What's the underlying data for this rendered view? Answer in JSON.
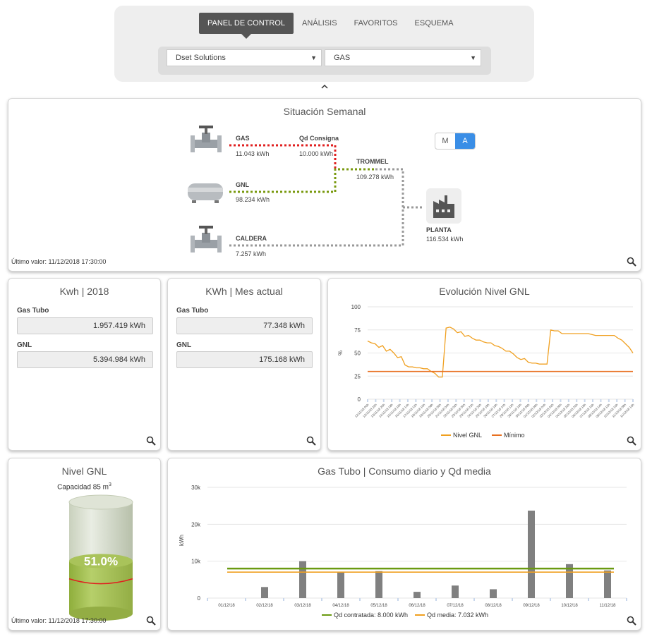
{
  "nav": {
    "tabs": [
      "PANEL DE CONTROL",
      "ANÁLISIS",
      "FAVORITOS",
      "ESQUEMA"
    ],
    "company_select": "Dset Solutions",
    "type_select": "GAS",
    "collapse_glyph": "^"
  },
  "situacion": {
    "title": "Situación Semanal",
    "gas_label": "GAS",
    "gas_value": "11.043 kWh",
    "qd_label": "Qd Consigna",
    "qd_value": "10.000 kWh",
    "trommel_label": "TROMMEL",
    "trommel_value": "109.278 kWh",
    "gnl_label": "GNL",
    "gnl_value": "98.234 kWh",
    "caldera_label": "CALDERA",
    "caldera_value": "7.257 kWh",
    "planta_label": "PLANTA",
    "planta_value": "116.534 kWh",
    "toggle_m": "M",
    "toggle_a": "A",
    "last_value": "Último valor: 11/12/2018 17:30:00",
    "colors": {
      "gas": "#e02020",
      "gnl": "#7a9a10",
      "caldera": "#999999"
    }
  },
  "kwh2018": {
    "title": "Kwh | 2018",
    "gas_label": "Gas Tubo",
    "gas_value": "1.957.419 kWh",
    "gnl_label": "GNL",
    "gnl_value": "5.394.984 kWh"
  },
  "kwhmes": {
    "title": "KWh | Mes actual",
    "gas_label": "Gas Tubo",
    "gas_value": "77.348 kWh",
    "gnl_label": "GNL",
    "gnl_value": "175.168 kWh"
  },
  "evolucion": {
    "title": "Evolución Nivel GNL",
    "ylabel": "%",
    "legend": [
      "Nivel GNL",
      "Mínimo"
    ]
  },
  "nivel": {
    "title": "Nivel GNL",
    "capacity_text": "Capacidad 85 m",
    "capacity_sup": "3",
    "percent_text": "51.0%",
    "last_value": "Último valor: 11/12/2018 17:30:00"
  },
  "consumo": {
    "title": "Gas Tubo | Consumo diario y Qd media",
    "ylabel": "kWh",
    "legend": [
      "Qd contratada: 8.000 kWh",
      "Qd media: 7.032 kWh"
    ]
  },
  "chart_data": [
    {
      "type": "line",
      "title": "Evolución Nivel GNL",
      "ylabel": "%",
      "ylim": [
        0,
        100
      ],
      "yticks": [
        0,
        25,
        50,
        75,
        100
      ],
      "grid": true,
      "legend_position": "bottom",
      "x_tick_labels": [
        "12/11/18 00h",
        "12/11/18 22h",
        "13/11/18 20h",
        "14/11/18 18h",
        "15/11/18 16h",
        "16/11/18 14h",
        "17/11/18 12h",
        "18/11/18 10h",
        "19/11/18 08h",
        "20/11/18 06h",
        "21/11/18 04h",
        "22/11/18 02h",
        "23/11/18 00h",
        "23/11/18 22h",
        "24/11/18 20h",
        "25/11/18 18h",
        "26/11/18 16h",
        "27/11/18 14h",
        "28/11/18 12h",
        "29/11/18 10h",
        "30/11/18 08h",
        "01/12/18 06h",
        "02/12/18 04h",
        "03/12/18 02h",
        "04/12/18 00h",
        "04/12/18 22h",
        "05/12/18 20h",
        "06/12/18 18h",
        "07/12/18 16h",
        "08/12/18 14h",
        "09/12/18 12h",
        "10/12/18 10h",
        "11/12/18 08h",
        "11/12/18 10h"
      ],
      "series": [
        {
          "name": "Nivel GNL",
          "color": "#f0a020",
          "values": [
            63,
            61,
            60,
            56,
            58,
            52,
            54,
            50,
            45,
            46,
            37,
            35,
            35,
            34,
            34,
            33,
            33,
            30,
            28,
            24,
            24,
            77,
            78,
            76,
            72,
            73,
            68,
            69,
            66,
            64,
            64,
            62,
            61,
            61,
            58,
            57,
            55,
            52,
            52,
            49,
            45,
            43,
            44,
            40,
            39,
            39,
            38,
            38,
            38,
            75,
            74,
            74,
            71,
            71,
            71,
            71,
            71,
            71,
            71,
            71,
            70,
            69,
            69,
            69,
            69,
            69,
            69,
            66,
            64,
            60,
            56,
            50
          ]
        },
        {
          "name": "Mínimo",
          "color": "#e87020",
          "values": [
            30,
            30,
            30,
            30,
            30,
            30,
            30,
            30,
            30,
            30,
            30,
            30,
            30,
            30,
            30,
            30,
            30,
            30,
            30,
            30,
            30,
            30,
            30,
            30,
            30,
            30,
            30,
            30,
            30,
            30,
            30,
            30,
            30,
            30,
            30,
            30,
            30,
            30,
            30,
            30,
            30,
            30,
            30,
            30,
            30,
            30,
            30,
            30,
            30,
            30,
            30,
            30,
            30,
            30,
            30,
            30,
            30,
            30,
            30,
            30,
            30,
            30,
            30,
            30,
            30,
            30,
            30,
            30,
            30,
            30,
            30,
            30
          ]
        }
      ]
    },
    {
      "type": "bar",
      "title": "Gas Tubo | Consumo diario y Qd media",
      "ylabel": "kWh",
      "ylim": [
        0,
        30000
      ],
      "yticks": [
        0,
        10000,
        20000,
        30000
      ],
      "ytick_labels": [
        "0",
        "10k",
        "20k",
        "30k"
      ],
      "grid": true,
      "legend_position": "bottom",
      "categories": [
        "01/12/18",
        "02/12/18",
        "03/12/18",
        "04/12/18",
        "05/12/18",
        "06/12/18",
        "07/12/18",
        "08/12/18",
        "09/12/18",
        "10/12/18",
        "11/12/18"
      ],
      "series": [
        {
          "name": "Consumo diario",
          "color": "#808080",
          "values": [
            0,
            3000,
            10000,
            7000,
            7300,
            1700,
            3400,
            2400,
            23700,
            9200,
            7500
          ]
        },
        {
          "name": "Qd contratada: 8.000 kWh",
          "color": "#6a9a10",
          "values": [
            8000,
            8000,
            8000,
            8000,
            8000,
            8000,
            8000,
            8000,
            8000,
            8000,
            8000
          ]
        },
        {
          "name": "Qd media: 7.032 kWh",
          "color": "#f0a020",
          "values": [
            7032,
            7032,
            7032,
            7032,
            7032,
            7032,
            7032,
            7032,
            7032,
            7032,
            7032
          ]
        }
      ]
    },
    {
      "type": "bar",
      "title": "Nivel GNL",
      "values": [
        51.0
      ],
      "ylim": [
        0,
        100
      ],
      "minimum_line": 30
    }
  ]
}
